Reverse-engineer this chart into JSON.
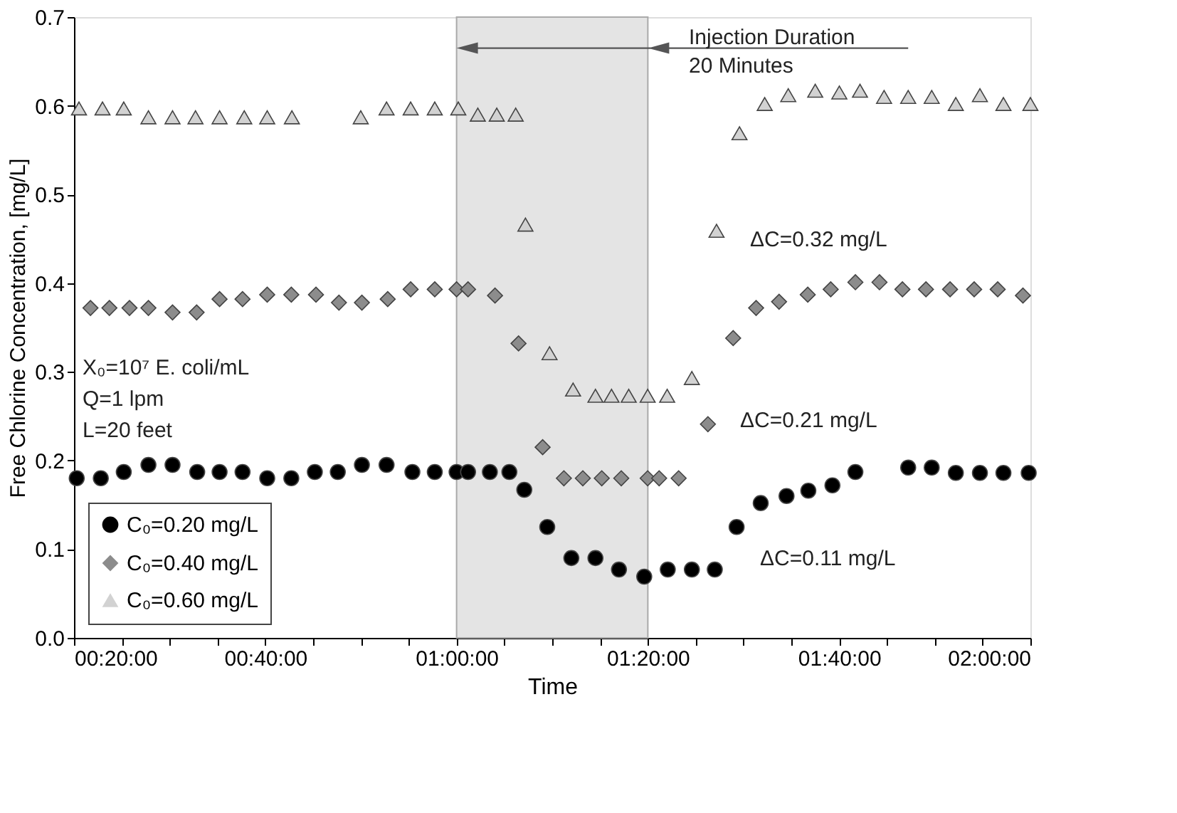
{
  "chart_data": {
    "type": "scatter",
    "xlabel": "Time",
    "ylabel": "Free Chlorine Concentration, [mg/L]",
    "xlim": [
      0.3333,
      2.0
    ],
    "ylim": [
      0,
      0.7
    ],
    "xticks": [
      {
        "value": 0.3333,
        "label": "00:20:00"
      },
      {
        "value": 0.4167,
        "label": null
      },
      {
        "value": 0.5,
        "label": null
      },
      {
        "value": 0.5833,
        "label": null
      },
      {
        "value": 0.6667,
        "label": "00:40:00"
      },
      {
        "value": 0.75,
        "label": null
      },
      {
        "value": 0.8333,
        "label": null
      },
      {
        "value": 0.9167,
        "label": null
      },
      {
        "value": 1.0,
        "label": "01:00:00"
      },
      {
        "value": 1.0833,
        "label": null
      },
      {
        "value": 1.1667,
        "label": null
      },
      {
        "value": 1.25,
        "label": null
      },
      {
        "value": 1.3333,
        "label": "01:20:00"
      },
      {
        "value": 1.4167,
        "label": null
      },
      {
        "value": 1.5,
        "label": null
      },
      {
        "value": 1.5833,
        "label": null
      },
      {
        "value": 1.6667,
        "label": "01:40:00"
      },
      {
        "value": 1.75,
        "label": null
      },
      {
        "value": 1.8333,
        "label": null
      },
      {
        "value": 1.9167,
        "label": null
      },
      {
        "value": 2.0,
        "label": "02:00:00"
      }
    ],
    "yticks": [
      {
        "value": 0,
        "label": "0.0"
      },
      {
        "value": 0.1,
        "label": "0.1"
      },
      {
        "value": 0.2,
        "label": "0.2"
      },
      {
        "value": 0.3,
        "label": "0.3"
      },
      {
        "value": 0.4,
        "label": "0.4"
      },
      {
        "value": 0.5,
        "label": "0.5"
      },
      {
        "value": 0.6,
        "label": "0.6"
      },
      {
        "value": 0.7,
        "label": "0.7"
      }
    ],
    "grid": false,
    "legend": "bottom left",
    "series": [
      {
        "name": "C₀=0.20 mg/L",
        "color": "#000000",
        "marker": "circle",
        "x": [
          0.338,
          0.38,
          0.42,
          0.463,
          0.505,
          0.548,
          0.587,
          0.627,
          0.67,
          0.712,
          0.753,
          0.793,
          0.835,
          0.878,
          0.923,
          0.962,
          1.0,
          1.02,
          1.058,
          1.092,
          1.118,
          1.158,
          1.2,
          1.242,
          1.283,
          1.327,
          1.368,
          1.41,
          1.45,
          1.488,
          1.53,
          1.575,
          1.613,
          1.655,
          1.695,
          1.787,
          1.828,
          1.87,
          1.912,
          1.953,
          1.997
        ],
        "values": [
          0.18,
          0.18,
          0.187,
          0.195,
          0.195,
          0.187,
          0.187,
          0.187,
          0.18,
          0.18,
          0.187,
          0.187,
          0.195,
          0.195,
          0.187,
          0.187,
          0.187,
          0.187,
          0.187,
          0.187,
          0.167,
          0.125,
          0.09,
          0.09,
          0.077,
          0.069,
          0.077,
          0.077,
          0.077,
          0.125,
          0.152,
          0.16,
          0.166,
          0.172,
          0.187,
          0.192,
          0.192,
          0.186,
          0.186,
          0.186,
          0.186
        ]
      },
      {
        "name": "C₀=0.40 mg/L",
        "color": "#8c8c8c",
        "marker": "diamond",
        "x": [
          0.362,
          0.395,
          0.43,
          0.463,
          0.505,
          0.547,
          0.587,
          0.627,
          0.67,
          0.712,
          0.755,
          0.795,
          0.835,
          0.88,
          0.92,
          0.962,
          1.0,
          1.02,
          1.067,
          1.108,
          1.15,
          1.187,
          1.22,
          1.253,
          1.287,
          1.333,
          1.353,
          1.387,
          1.438,
          1.482,
          1.522,
          1.562,
          1.612,
          1.652,
          1.695,
          1.737,
          1.777,
          1.818,
          1.86,
          1.902,
          1.943,
          1.987
        ],
        "values": [
          0.372,
          0.372,
          0.372,
          0.372,
          0.367,
          0.367,
          0.382,
          0.382,
          0.387,
          0.387,
          0.387,
          0.378,
          0.378,
          0.382,
          0.393,
          0.393,
          0.393,
          0.393,
          0.386,
          0.332,
          0.215,
          0.18,
          0.18,
          0.18,
          0.18,
          0.18,
          0.18,
          0.18,
          0.241,
          0.338,
          0.372,
          0.379,
          0.387,
          0.393,
          0.401,
          0.401,
          0.393,
          0.393,
          0.393,
          0.393,
          0.393,
          0.386
        ]
      },
      {
        "name": "C₀=0.60 mg/L",
        "color": "#d2d2d2",
        "marker": "triangle",
        "x": [
          0.342,
          0.383,
          0.42,
          0.463,
          0.505,
          0.545,
          0.587,
          0.63,
          0.67,
          0.713,
          0.833,
          0.878,
          0.92,
          0.962,
          1.003,
          1.037,
          1.07,
          1.103,
          1.12,
          1.162,
          1.203,
          1.242,
          1.27,
          1.3,
          1.333,
          1.367,
          1.41,
          1.453,
          1.493,
          1.537,
          1.578,
          1.625,
          1.667,
          1.703,
          1.745,
          1.787,
          1.828,
          1.87,
          1.912,
          1.953,
          2.0
        ],
        "values": [
          0.597,
          0.597,
          0.597,
          0.587,
          0.587,
          0.587,
          0.587,
          0.587,
          0.587,
          0.587,
          0.587,
          0.597,
          0.597,
          0.597,
          0.597,
          0.59,
          0.59,
          0.59,
          0.466,
          0.321,
          0.28,
          0.273,
          0.273,
          0.273,
          0.273,
          0.273,
          0.293,
          0.459,
          0.569,
          0.602,
          0.612,
          0.617,
          0.615,
          0.617,
          0.61,
          0.61,
          0.61,
          0.602,
          0.612,
          0.602,
          0.602
        ]
      }
    ],
    "bands": [
      {
        "axis": "x",
        "from": 1.0,
        "to": 1.3333,
        "color": "#e4e4e4"
      }
    ],
    "annotations": [
      "Injection Duration\n20 Minutes",
      "ΔC=0.32 mg/L",
      "ΔC=0.21 mg/L",
      "ΔC=0.11 mg/L",
      "X₀=10⁷ E. coli/mL\nQ=1 lpm\nL=20 feet"
    ]
  }
}
